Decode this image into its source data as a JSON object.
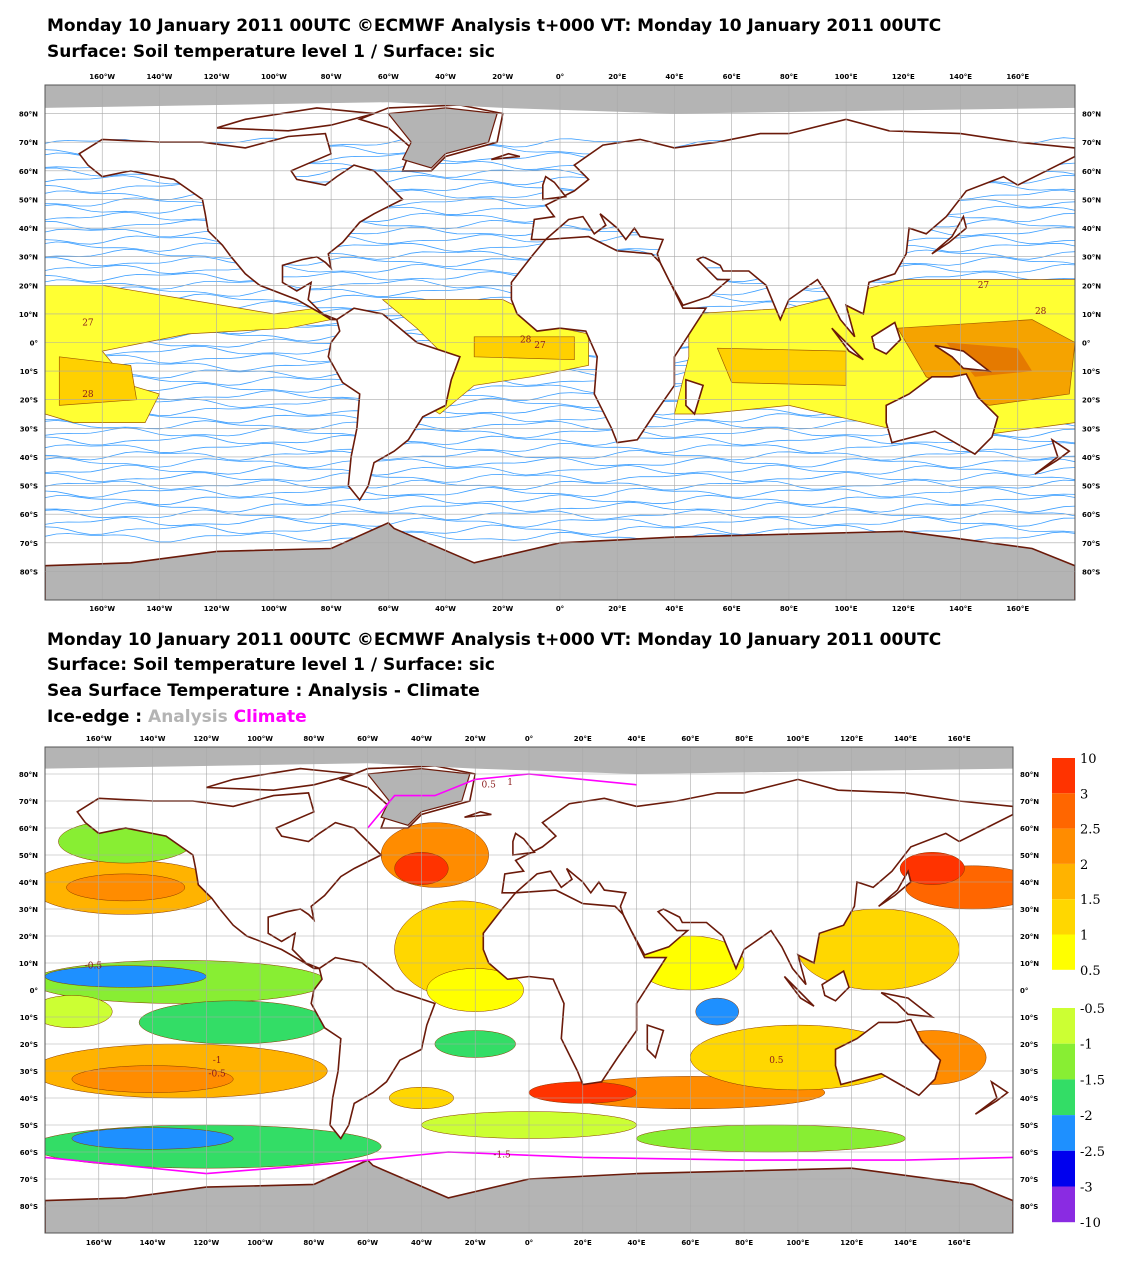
{
  "map1": {
    "title_lines": [
      "Monday 10 January 2011 00UTC ©ECMWF Analysis t+000 VT: Monday 10 January 2011 00UTC",
      "Surface: Soil temperature level 1 / Surface: sic"
    ],
    "contour_labels": [
      27,
      28,
      28,
      27,
      27,
      28
    ]
  },
  "map2": {
    "title_lines": [
      "Monday 10 January 2011 00UTC ©ECMWF Analysis t+000 VT: Monday 10 January 2011 00UTC",
      "Surface: Soil temperature level 1 / Surface: sic",
      "Sea Surface Temperature : Analysis - Climate"
    ],
    "ice_edge": {
      "label": "Ice-edge :",
      "analysis": "Analysis",
      "climate": "Climate",
      "analysis_color": "#b4b4b4",
      "climate_color": "#ff00ff"
    },
    "contour_labels": [
      -0.5,
      0.5,
      1,
      -1,
      -0.5,
      0.5,
      -1.5
    ],
    "colorbar": {
      "warm_levels": [
        10,
        3,
        2.5,
        2,
        1.5,
        1,
        0.5
      ],
      "warm_colors": [
        "#ff3300",
        "#ff6600",
        "#ff8c00",
        "#ffb300",
        "#ffd700",
        "#ffff00"
      ],
      "cold_levels": [
        -0.5,
        -1,
        -1.5,
        -2,
        -2.5,
        -3,
        -10
      ],
      "cold_colors": [
        "#ccff33",
        "#88ee33",
        "#33dd66",
        "#1e90ff",
        "#0000ee",
        "#8a2be2"
      ]
    }
  },
  "lon_labels": [
    "160°W",
    "140°W",
    "120°W",
    "100°W",
    "80°W",
    "60°W",
    "40°W",
    "20°W",
    "0°",
    "20°E",
    "40°E",
    "60°E",
    "80°E",
    "100°E",
    "120°E",
    "140°E",
    "160°E"
  ],
  "lat_labels": [
    "80°N",
    "70°N",
    "60°N",
    "50°N",
    "40°N",
    "30°N",
    "20°N",
    "10°N",
    "0°",
    "10°S",
    "20°S",
    "30°S",
    "40°S",
    "50°S",
    "60°S",
    "70°S",
    "80°S"
  ]
}
